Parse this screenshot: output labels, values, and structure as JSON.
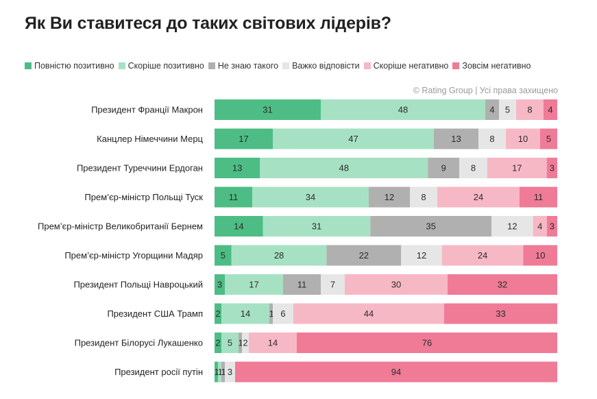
{
  "title": "Як Ви ставитеся до таких світових лідерів?",
  "copyright": "© Rating Group | Усі права захищено",
  "legend": [
    {
      "label": "Повністю позитивно",
      "color": "#4dbd85"
    },
    {
      "label": "Скоріше позитивно",
      "color": "#a7e1c3"
    },
    {
      "label": "Не знаю такого",
      "color": "#b0b0b0"
    },
    {
      "label": "Важко відповісти",
      "color": "#e6e6e6"
    },
    {
      "label": "Скоріше негативно",
      "color": "#f7b8c6"
    },
    {
      "label": "Зовсім негативно",
      "color": "#ef7b97"
    }
  ],
  "chart_data": {
    "type": "bar",
    "orientation": "horizontal",
    "stacked": true,
    "title": "Як Ви ставитеся до таких світових лідерів?",
    "categories": [
      "Президент Франції Макрон",
      "Канцлер Німеччини Мерц",
      "Президент Туреччини Ердоган",
      "Прем’єр-міністр Польщі Туск",
      "Прем’єр-міністр Великобританії Бернем",
      "Прем’єр-міністр Угорщини Мадяр",
      "Президент Польщі Навроцький",
      "Президент США Трамп",
      "Президент Білорусі Лукашенко",
      "Президент росії путін"
    ],
    "series": [
      {
        "name": "Повністю позитивно",
        "color": "#4dbd85",
        "values": [
          31,
          17,
          13,
          11,
          14,
          5,
          3,
          2,
          2,
          1
        ]
      },
      {
        "name": "Скоріше позитивно",
        "color": "#a7e1c3",
        "values": [
          48,
          47,
          48,
          34,
          31,
          28,
          17,
          14,
          5,
          1
        ]
      },
      {
        "name": "Не знаю такого",
        "color": "#b0b0b0",
        "values": [
          4,
          13,
          9,
          12,
          35,
          22,
          11,
          1,
          1,
          1
        ]
      },
      {
        "name": "Важко відповісти",
        "color": "#e6e6e6",
        "values": [
          5,
          8,
          8,
          8,
          12,
          12,
          7,
          6,
          2,
          3
        ]
      },
      {
        "name": "Скоріше негативно",
        "color": "#f7b8c6",
        "values": [
          8,
          10,
          17,
          24,
          4,
          24,
          30,
          44,
          14,
          0
        ]
      },
      {
        "name": "Зовсім негативно",
        "color": "#ef7b97",
        "values": [
          4,
          5,
          3,
          11,
          3,
          10,
          32,
          33,
          76,
          94
        ]
      }
    ],
    "xlim": [
      0,
      100
    ],
    "legend_position": "top",
    "grid": false
  }
}
